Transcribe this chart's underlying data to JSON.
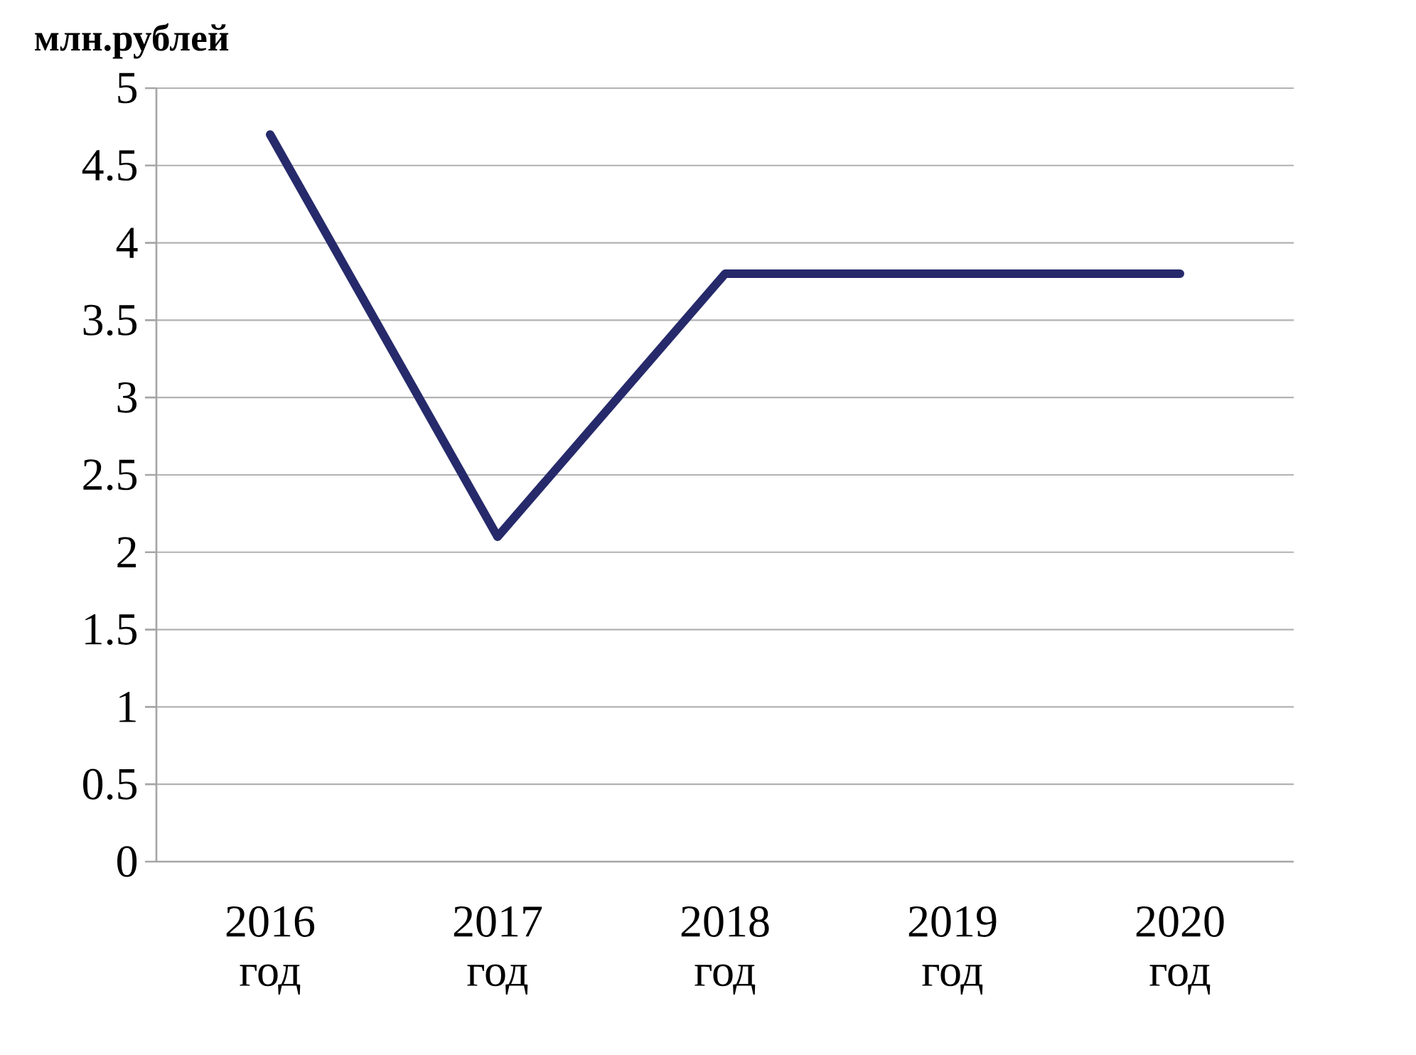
{
  "chart_data": {
    "type": "line",
    "ylabel": "млн.рублей",
    "categories": [
      "2016 год",
      "2017 год",
      "2018 год",
      "2019 год",
      "2020 год"
    ],
    "series": [
      {
        "color": "#262a6b",
        "values": [
          4.7,
          2.1,
          3.8,
          3.8,
          3.8
        ]
      }
    ],
    "ylim": [
      0,
      5
    ],
    "yticks": [
      0,
      0.5,
      1,
      1.5,
      2,
      2.5,
      3,
      3.5,
      4,
      4.5,
      5
    ],
    "grid": "y",
    "marker": "none",
    "line_style": "solid"
  }
}
